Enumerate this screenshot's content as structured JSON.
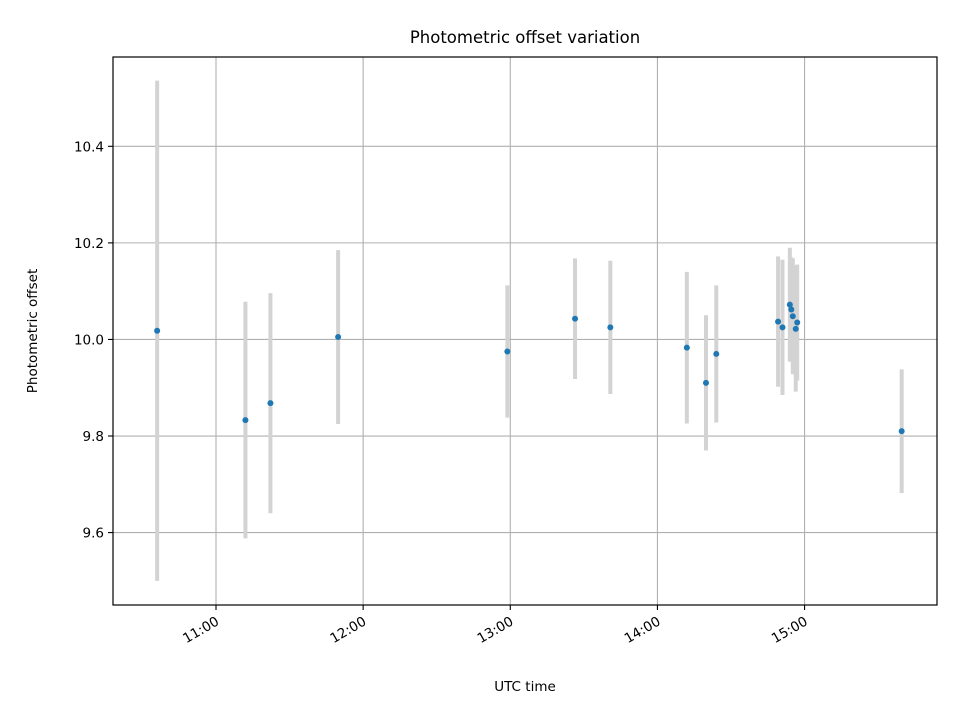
{
  "chart_data": {
    "type": "scatter",
    "title": "Photometric offset variation",
    "xlabel": "UTC time",
    "ylabel": "Photometric offset",
    "grid": true,
    "xlim_hours": [
      10.3,
      15.9
    ],
    "ylim": [
      9.45,
      10.585
    ],
    "x_ticks": [
      {
        "value": 11,
        "label": "11:00"
      },
      {
        "value": 12,
        "label": "12:00"
      },
      {
        "value": 13,
        "label": "13:00"
      },
      {
        "value": 14,
        "label": "14:00"
      },
      {
        "value": 15,
        "label": "15:00"
      }
    ],
    "y_ticks": [
      {
        "value": 9.6,
        "label": "9.6"
      },
      {
        "value": 9.8,
        "label": "9.8"
      },
      {
        "value": 10.0,
        "label": "10.0"
      },
      {
        "value": 10.2,
        "label": "10.2"
      },
      {
        "value": 10.4,
        "label": "10.4"
      }
    ],
    "marker_color": "#1f77b4",
    "errorbar_color": "#d3d3d3",
    "points": [
      {
        "time": "10:36",
        "x": 10.6,
        "y": 10.018,
        "err": 0.518
      },
      {
        "time": "11:12",
        "x": 11.2,
        "y": 9.833,
        "err": 0.245
      },
      {
        "time": "11:22",
        "x": 11.37,
        "y": 9.868,
        "err": 0.228
      },
      {
        "time": "11:50",
        "x": 11.83,
        "y": 10.005,
        "err": 0.18
      },
      {
        "time": "12:59",
        "x": 12.98,
        "y": 9.975,
        "err": 0.137
      },
      {
        "time": "13:27",
        "x": 13.44,
        "y": 10.043,
        "err": 0.125
      },
      {
        "time": "13:41",
        "x": 13.68,
        "y": 10.025,
        "err": 0.138
      },
      {
        "time": "14:12",
        "x": 14.2,
        "y": 9.983,
        "err": 0.157
      },
      {
        "time": "14:20",
        "x": 14.33,
        "y": 9.91,
        "err": 0.14
      },
      {
        "time": "14:24",
        "x": 14.4,
        "y": 9.97,
        "err": 0.142
      },
      {
        "time": "14:49",
        "x": 14.82,
        "y": 10.037,
        "err": 0.135
      },
      {
        "time": "14:51",
        "x": 14.85,
        "y": 10.025,
        "err": 0.14
      },
      {
        "time": "14:54",
        "x": 14.9,
        "y": 10.072,
        "err": 0.118
      },
      {
        "time": "14:55",
        "x": 14.91,
        "y": 10.062,
        "err": 0.108
      },
      {
        "time": "14:55",
        "x": 14.92,
        "y": 10.048,
        "err": 0.12
      },
      {
        "time": "14:56",
        "x": 14.94,
        "y": 10.022,
        "err": 0.13
      },
      {
        "time": "14:57",
        "x": 14.95,
        "y": 10.035,
        "err": 0.12
      },
      {
        "time": "15:39",
        "x": 15.66,
        "y": 9.81,
        "err": 0.128
      }
    ]
  }
}
